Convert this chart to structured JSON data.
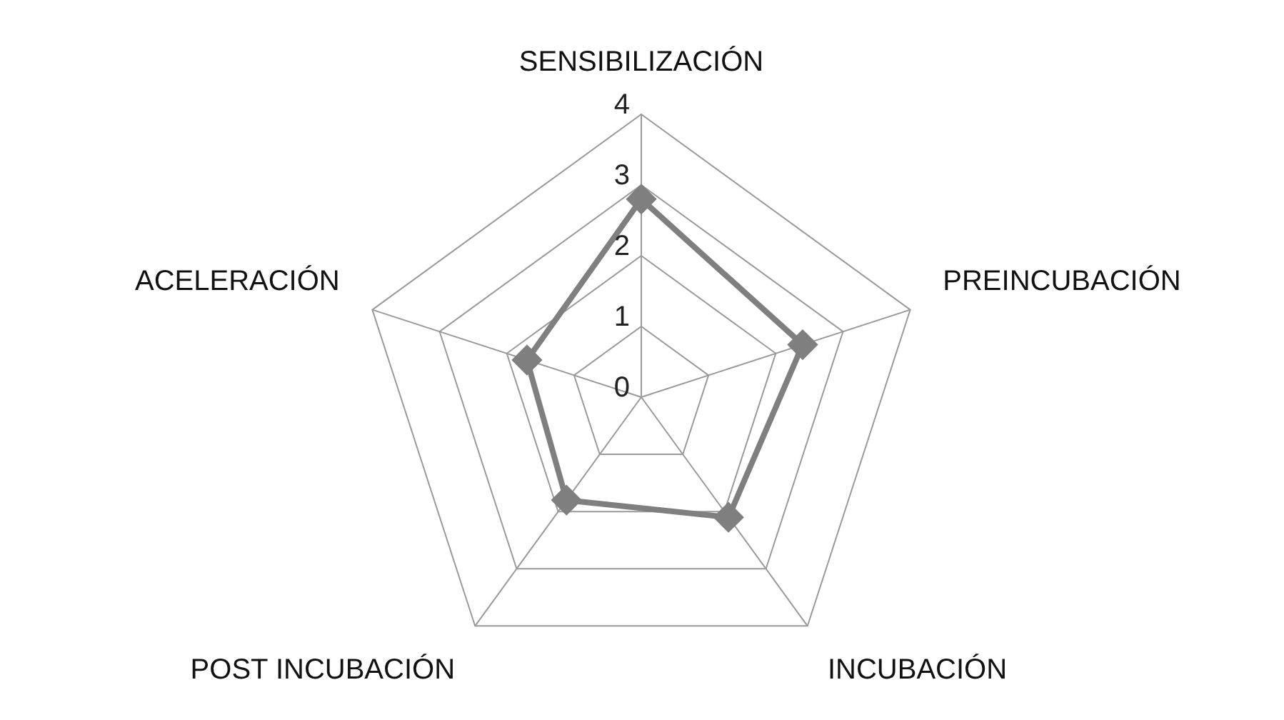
{
  "chart_data": {
    "type": "radar",
    "categories": [
      "SENSIBILIZACIÓN",
      "PREINCUBACIÓN",
      "INCUBACIÓN",
      "POST INCUBACIÓN",
      "ACELERACIÓN"
    ],
    "series": [
      {
        "color": "#7f7f7f",
        "values": [
          2.8,
          2.4,
          2.1,
          1.8,
          1.7
        ]
      }
    ],
    "ylim": [
      0,
      4
    ],
    "yticks": [
      0,
      1,
      2,
      3,
      4
    ],
    "marker": "diamond",
    "grid": true,
    "legend": false
  }
}
